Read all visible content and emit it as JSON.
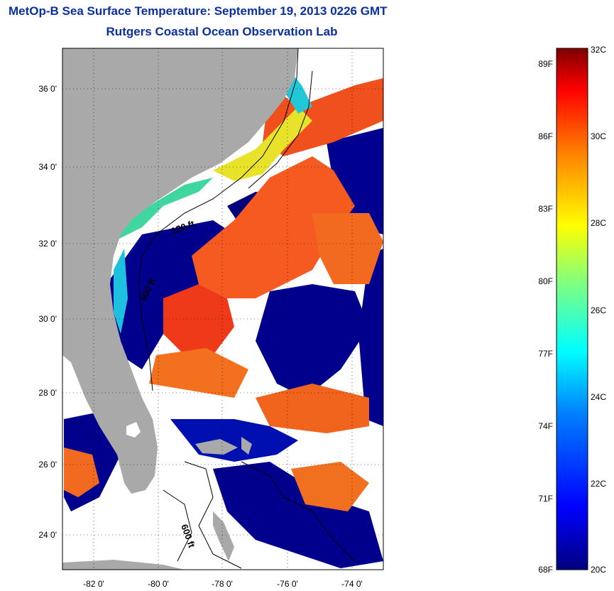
{
  "title": {
    "line1": "MetOp-B Sea Surface Temperature:  September 19, 2013 0226 GMT",
    "line2": "Rutgers Coastal Ocean Observation Lab"
  },
  "map": {
    "lat_ticks": [
      "36 0'",
      "34 0'",
      "32 0'",
      "30 0'",
      "28 0'",
      "26 0'",
      "24 0'"
    ],
    "lon_ticks": [
      "-82 0'",
      "-80 0'",
      "-78 0'",
      "-76 0'",
      "-74 0'"
    ],
    "contour_labels": [
      "120 ft",
      "600 ft",
      "600 ft"
    ]
  },
  "colorbar": {
    "fahrenheit": [
      "89F",
      "86F",
      "83F",
      "80F",
      "77F",
      "74F",
      "71F",
      "68F"
    ],
    "celsius": [
      "32C",
      "30C",
      "28C",
      "26C",
      "24C",
      "22C",
      "20C"
    ],
    "min_c": 20,
    "max_c": 32,
    "colors": [
      "#00007f",
      "#0000ff",
      "#0080ff",
      "#00ffff",
      "#80ff80",
      "#ffff00",
      "#ff8000",
      "#ff0000",
      "#7f0000"
    ]
  },
  "colors": {
    "land": "#a9a9a9",
    "title": "#0b2fa3"
  }
}
